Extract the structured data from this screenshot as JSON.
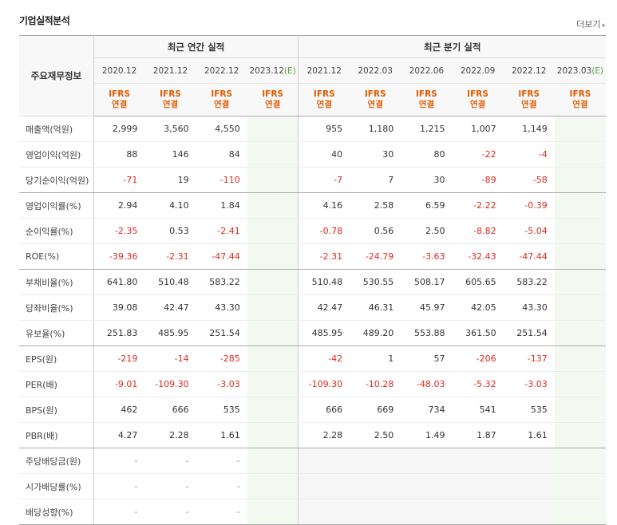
{
  "section_title": "기업실적분석",
  "more_label": "더보기",
  "row_header": "주요재무정보",
  "groups": {
    "annual": "최근 연간 실적",
    "quarterly": "최근 분기 실적"
  },
  "periods": {
    "annual": [
      "2020.12",
      "2021.12",
      "2022.12",
      "2023.12"
    ],
    "quarterly": [
      "2021.12",
      "2022.03",
      "2022.06",
      "2022.09",
      "2022.12",
      "2023.03"
    ],
    "estimate_tag": "(E)"
  },
  "basis": {
    "line1": "IFRS",
    "line2": "연결"
  },
  "rows": [
    {
      "label": "매출액(억원)",
      "annual": [
        "2,999",
        "3,560",
        "4,550",
        ""
      ],
      "quarterly": [
        "955",
        "1,180",
        "1,215",
        "1,007",
        "1,149",
        ""
      ]
    },
    {
      "label": "영업이익(억원)",
      "annual": [
        "88",
        "146",
        "84",
        ""
      ],
      "quarterly": [
        "40",
        "30",
        "80",
        "-22",
        "-4",
        ""
      ]
    },
    {
      "label": "당기순이익(억원)",
      "annual": [
        "-71",
        "19",
        "-110",
        ""
      ],
      "quarterly": [
        "-7",
        "7",
        "30",
        "-89",
        "-58",
        ""
      ]
    },
    {
      "label": "영업이익률(%)",
      "annual": [
        "2.94",
        "4.10",
        "1.84",
        ""
      ],
      "quarterly": [
        "4.16",
        "2.58",
        "6.59",
        "-2.22",
        "-0.39",
        ""
      ]
    },
    {
      "label": "순이익률(%)",
      "annual": [
        "-2.35",
        "0.53",
        "-2.41",
        ""
      ],
      "quarterly": [
        "-0.78",
        "0.56",
        "2.50",
        "-8.82",
        "-5.04",
        ""
      ]
    },
    {
      "label": "ROE(%)",
      "annual": [
        "-39.36",
        "-2.31",
        "-47.44",
        ""
      ],
      "quarterly": [
        "-2.31",
        "-24.79",
        "-3.63",
        "-32.43",
        "-47.44",
        ""
      ]
    },
    {
      "label": "부채비율(%)",
      "annual": [
        "641.80",
        "510.48",
        "583.22",
        ""
      ],
      "quarterly": [
        "510.48",
        "530.55",
        "508.17",
        "605.65",
        "583.22",
        ""
      ]
    },
    {
      "label": "당좌비율(%)",
      "annual": [
        "39.08",
        "42.47",
        "43.30",
        ""
      ],
      "quarterly": [
        "42.47",
        "46.31",
        "45.97",
        "42.05",
        "43.30",
        ""
      ]
    },
    {
      "label": "유보율(%)",
      "annual": [
        "251.83",
        "485.95",
        "251.54",
        ""
      ],
      "quarterly": [
        "485.95",
        "489.20",
        "553.88",
        "361.50",
        "251.54",
        ""
      ]
    },
    {
      "label": "EPS(원)",
      "annual": [
        "-219",
        "-14",
        "-285",
        ""
      ],
      "quarterly": [
        "-42",
        "1",
        "57",
        "-206",
        "-137",
        ""
      ]
    },
    {
      "label": "PER(배)",
      "annual": [
        "-9.01",
        "-109.30",
        "-3.03",
        ""
      ],
      "quarterly": [
        "-109.30",
        "-10.28",
        "-48.03",
        "-5.32",
        "-3.03",
        ""
      ]
    },
    {
      "label": "BPS(원)",
      "annual": [
        "462",
        "666",
        "535",
        ""
      ],
      "quarterly": [
        "666",
        "669",
        "734",
        "541",
        "535",
        ""
      ]
    },
    {
      "label": "PBR(배)",
      "annual": [
        "4.27",
        "2.28",
        "1.61",
        ""
      ],
      "quarterly": [
        "2.28",
        "2.50",
        "1.49",
        "1.87",
        "1.61",
        ""
      ]
    },
    {
      "label": "주당배당금(원)",
      "annual": [
        "-",
        "-",
        "-",
        ""
      ],
      "quarterly": [
        "",
        "",
        "",
        "",
        "",
        ""
      ]
    },
    {
      "label": "시가배당률(%)",
      "annual": [
        "-",
        "-",
        "-",
        ""
      ],
      "quarterly": [
        "",
        "",
        "",
        "",
        "",
        ""
      ]
    },
    {
      "label": "배당성향(%)",
      "annual": [
        "-",
        "-",
        "-",
        ""
      ],
      "quarterly": [
        "",
        "",
        "",
        "",
        "",
        ""
      ]
    }
  ]
}
